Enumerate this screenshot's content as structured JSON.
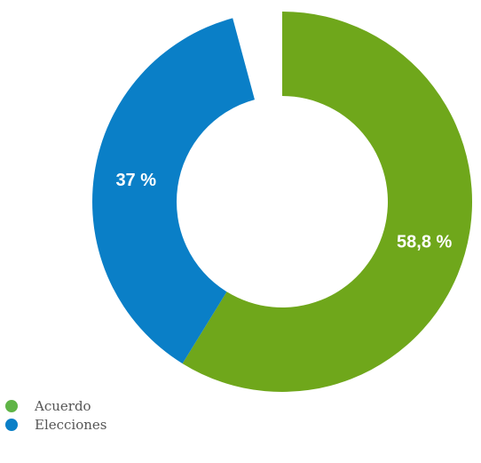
{
  "chart_data": {
    "type": "pie",
    "style": "donut",
    "slices": [
      {
        "label": "Acuerdo",
        "value": 58.8,
        "display": "58,8 %",
        "color": "#6fa71b"
      },
      {
        "label": "Elecciones",
        "value": 37,
        "display": "37 %",
        "color": "#0a7fc7"
      }
    ],
    "legend_position": "bottom-left"
  }
}
